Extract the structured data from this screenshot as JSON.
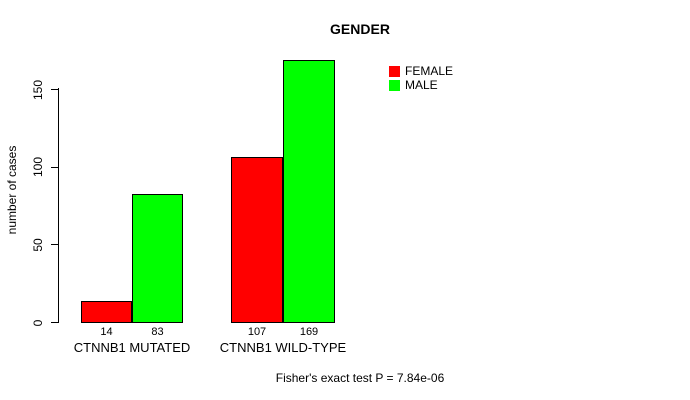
{
  "chart_data": {
    "type": "bar",
    "title": "GENDER",
    "ylabel": "number of cases",
    "xlabel": "",
    "categories": [
      "CTNNB1 MUTATED",
      "CTNNB1 WILD-TYPE"
    ],
    "series": [
      {
        "name": "FEMALE",
        "color": "#FF0000",
        "values": [
          14,
          107
        ]
      },
      {
        "name": "MALE",
        "color": "#00FF00",
        "values": [
          83,
          169
        ]
      }
    ],
    "yticks": [
      0,
      50,
      100,
      150
    ],
    "ylim": [
      0,
      170
    ],
    "grid": false,
    "legend_position": "top-right",
    "annotation": "Fisher's exact test P = 7.84e-06",
    "colors": {
      "background": "#FFFFFF",
      "axis": "#000000",
      "text": "#000000"
    }
  }
}
